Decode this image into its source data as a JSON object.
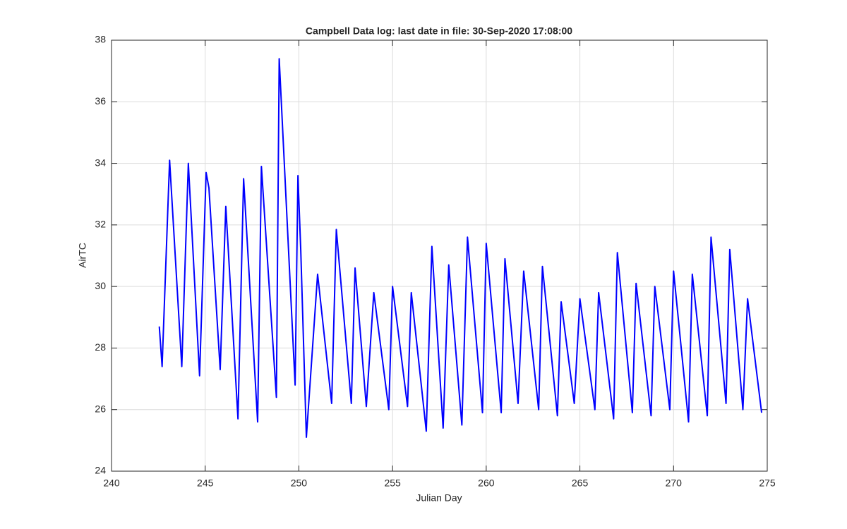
{
  "chart_data": {
    "type": "line",
    "title": "Campbell Data log: last date in file: 30-Sep-2020 17:08:00",
    "xlabel": "Julian Day",
    "ylabel": "AirTC",
    "color": "#0000ff",
    "grid": true,
    "xlim": [
      240,
      275
    ],
    "xticks": [
      240,
      245,
      250,
      255,
      260,
      265,
      270,
      275
    ],
    "ylim": [
      24,
      38
    ],
    "yticks": [
      24,
      26,
      28,
      30,
      32,
      34,
      36,
      38
    ],
    "x": [
      242.55,
      242.7,
      243.1,
      243.75,
      244.1,
      244.7,
      245.05,
      245.2,
      245.8,
      246.1,
      246.75,
      247.05,
      247.8,
      248.0,
      248.8,
      248.95,
      249.8,
      249.95,
      250.1,
      250.4,
      251.0,
      251.75,
      252.0,
      252.8,
      253.0,
      253.6,
      254.0,
      254.8,
      255.0,
      255.8,
      256.0,
      256.8,
      257.1,
      257.7,
      258.0,
      258.7,
      259.0,
      259.8,
      260.0,
      260.8,
      261.0,
      261.7,
      262.0,
      262.8,
      263.0,
      263.8,
      264.0,
      264.7,
      265.0,
      265.8,
      266.0,
      266.8,
      267.0,
      267.8,
      268.0,
      268.8,
      269.0,
      269.8,
      270.0,
      270.8,
      271.0,
      271.8,
      272.0,
      272.8,
      273.0,
      273.7,
      273.95,
      274.7
    ],
    "values": [
      28.7,
      27.4,
      34.1,
      27.4,
      34.0,
      27.1,
      33.7,
      33.2,
      27.3,
      32.6,
      25.7,
      33.5,
      25.6,
      33.9,
      26.4,
      37.4,
      26.8,
      33.6,
      31.2,
      25.1,
      30.4,
      26.2,
      31.85,
      26.2,
      30.6,
      26.1,
      29.8,
      26.0,
      30.0,
      26.1,
      29.8,
      25.3,
      31.3,
      25.4,
      30.7,
      25.5,
      31.6,
      25.9,
      31.4,
      25.9,
      30.9,
      26.2,
      30.5,
      26.0,
      30.65,
      25.8,
      29.5,
      26.2,
      29.6,
      26.0,
      29.8,
      25.7,
      31.1,
      25.9,
      30.1,
      25.8,
      30.0,
      26.0,
      30.5,
      25.6,
      30.4,
      25.8,
      31.6,
      26.2,
      31.2,
      26.0,
      29.6,
      25.9
    ]
  }
}
